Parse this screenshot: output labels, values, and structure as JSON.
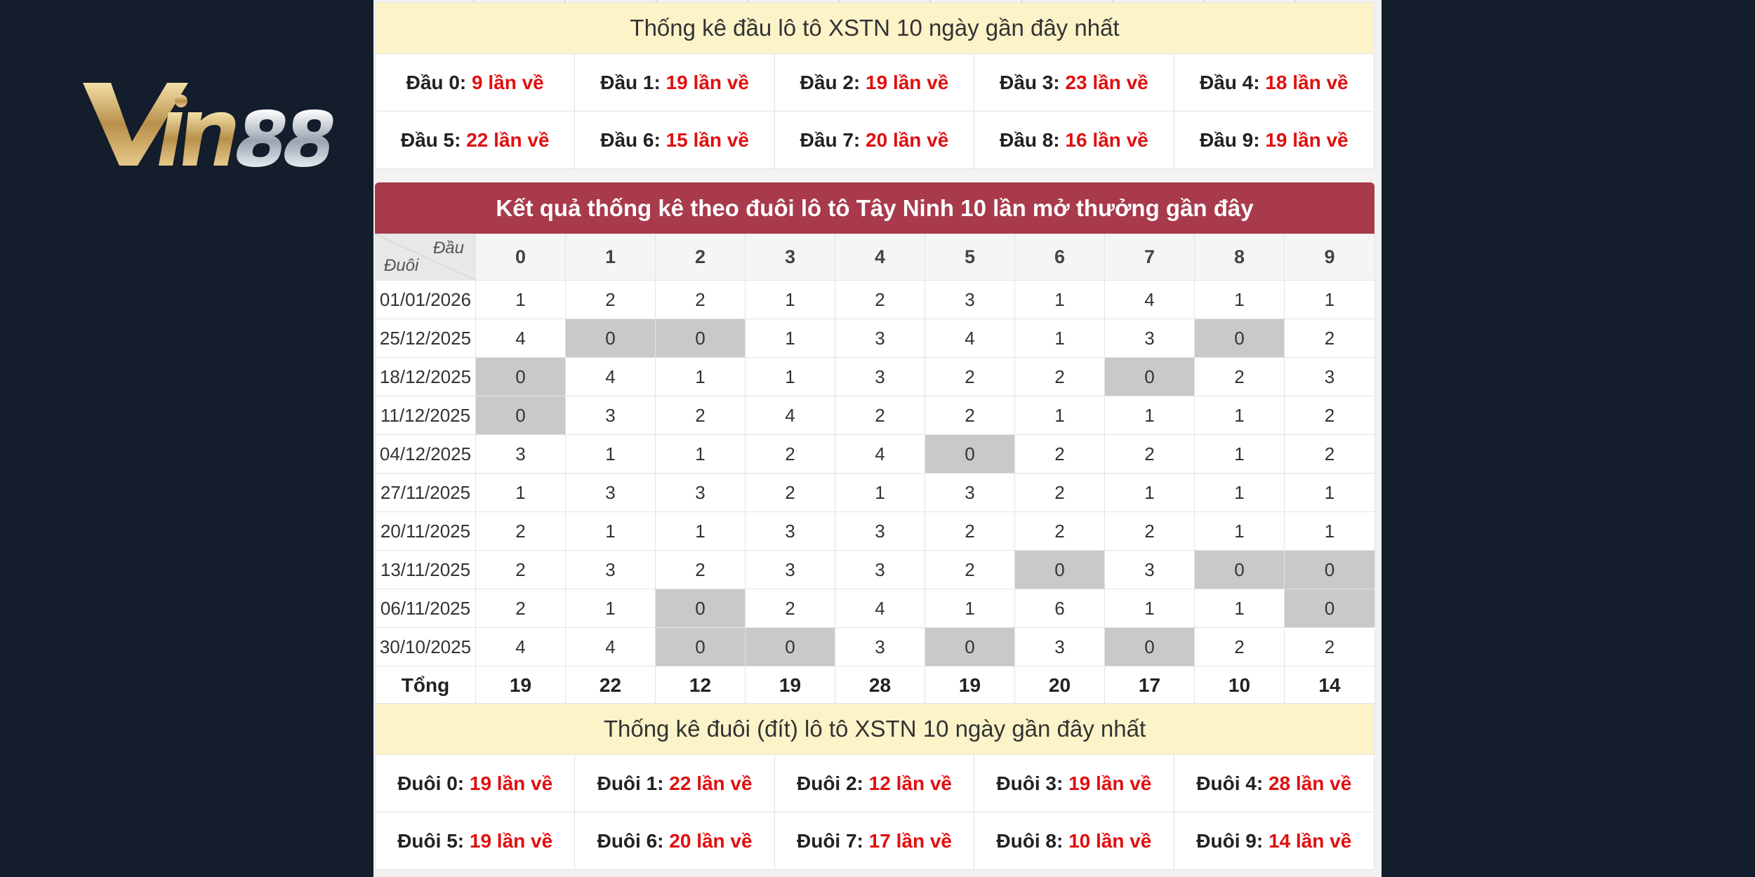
{
  "logo": {
    "text": "Vin88"
  },
  "head_section": {
    "title": "Thống kê đầu lô tô XSTN 10 ngày gần đây nhất",
    "items": [
      {
        "label": "Đầu 0:",
        "value": "9 lần về"
      },
      {
        "label": "Đầu 1:",
        "value": "19 lần về"
      },
      {
        "label": "Đầu 2:",
        "value": "19 lần về"
      },
      {
        "label": "Đầu 3:",
        "value": "23 lần về"
      },
      {
        "label": "Đầu 4:",
        "value": "18 lần về"
      },
      {
        "label": "Đầu 5:",
        "value": "22 lần về"
      },
      {
        "label": "Đầu 6:",
        "value": "15 lần về"
      },
      {
        "label": "Đầu 7:",
        "value": "20 lần về"
      },
      {
        "label": "Đầu 8:",
        "value": "16 lần về"
      },
      {
        "label": "Đầu 9:",
        "value": "19 lần về"
      }
    ]
  },
  "results_table": {
    "title": "Kết quả thống kê theo đuôi lô tô Tây Ninh 10 lần mở thưởng gần đây",
    "corner_top": "Đầu",
    "corner_bottom": "Đuôi",
    "columns": [
      "0",
      "1",
      "2",
      "3",
      "4",
      "5",
      "6",
      "7",
      "8",
      "9"
    ],
    "rows": [
      {
        "date": "01/01/2026",
        "values": [
          "1",
          "2",
          "2",
          "1",
          "2",
          "3",
          "1",
          "4",
          "1",
          "1"
        ]
      },
      {
        "date": "25/12/2025",
        "values": [
          "4",
          "0",
          "0",
          "1",
          "3",
          "4",
          "1",
          "3",
          "0",
          "2"
        ]
      },
      {
        "date": "18/12/2025",
        "values": [
          "0",
          "4",
          "1",
          "1",
          "3",
          "2",
          "2",
          "0",
          "2",
          "3"
        ]
      },
      {
        "date": "11/12/2025",
        "values": [
          "0",
          "3",
          "2",
          "4",
          "2",
          "2",
          "1",
          "1",
          "1",
          "2"
        ]
      },
      {
        "date": "04/12/2025",
        "values": [
          "3",
          "1",
          "1",
          "2",
          "4",
          "0",
          "2",
          "2",
          "1",
          "2"
        ]
      },
      {
        "date": "27/11/2025",
        "values": [
          "1",
          "3",
          "3",
          "2",
          "1",
          "3",
          "2",
          "1",
          "1",
          "1"
        ]
      },
      {
        "date": "20/11/2025",
        "values": [
          "2",
          "1",
          "1",
          "3",
          "3",
          "2",
          "2",
          "2",
          "1",
          "1"
        ]
      },
      {
        "date": "13/11/2025",
        "values": [
          "2",
          "3",
          "2",
          "3",
          "3",
          "2",
          "0",
          "3",
          "0",
          "0"
        ]
      },
      {
        "date": "06/11/2025",
        "values": [
          "2",
          "1",
          "0",
          "2",
          "4",
          "1",
          "6",
          "1",
          "1",
          "0"
        ]
      },
      {
        "date": "30/10/2025",
        "values": [
          "4",
          "4",
          "0",
          "0",
          "3",
          "0",
          "3",
          "0",
          "2",
          "2"
        ]
      }
    ],
    "total_label": "Tổng",
    "totals": [
      "19",
      "22",
      "12",
      "19",
      "28",
      "19",
      "20",
      "17",
      "10",
      "14"
    ]
  },
  "tail_section": {
    "title": "Thống kê đuôi (đít) lô tô XSTN 10 ngày gần đây nhất",
    "items": [
      {
        "label": "Đuôi 0:",
        "value": "19 lần về"
      },
      {
        "label": "Đuôi 1:",
        "value": "22 lần về"
      },
      {
        "label": "Đuôi 2:",
        "value": "12 lần về"
      },
      {
        "label": "Đuôi 3:",
        "value": "19 lần về"
      },
      {
        "label": "Đuôi 4:",
        "value": "28 lần về"
      },
      {
        "label": "Đuôi 5:",
        "value": "19 lần về"
      },
      {
        "label": "Đuôi 6:",
        "value": "20 lần về"
      },
      {
        "label": "Đuôi 7:",
        "value": "17 lần về"
      },
      {
        "label": "Đuôi 8:",
        "value": "10 lần về"
      },
      {
        "label": "Đuôi 9:",
        "value": "14 lần về"
      }
    ]
  },
  "colors": {
    "accent_red": "#e01010",
    "header_red": "#a83a4b",
    "highlight_yellow": "#fdf3c9",
    "zero_gray": "#c9c9c9",
    "background": "#141d2b"
  }
}
